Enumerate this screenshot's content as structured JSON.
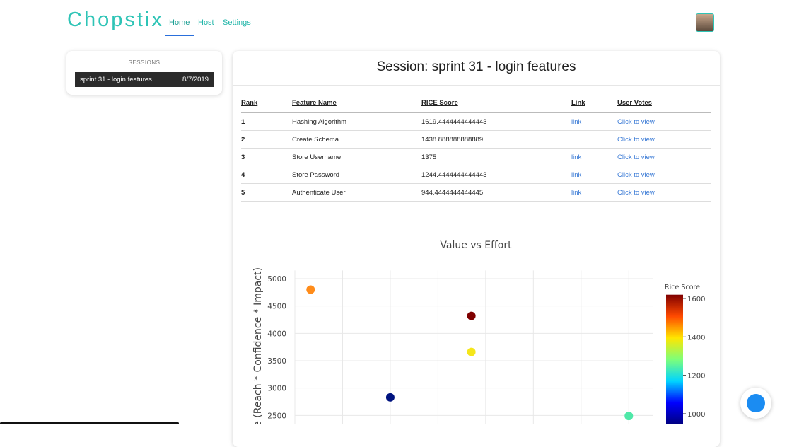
{
  "header": {
    "brand": "Chopstix",
    "nav": [
      "Home",
      "Host",
      "Settings"
    ]
  },
  "sidebar": {
    "title": "SESSIONS",
    "sessions": [
      {
        "name": "sprint 31 - login features",
        "date": "8/7/2019"
      }
    ]
  },
  "session": {
    "title": "Session: sprint 31 - login features",
    "table": {
      "headers": [
        "Rank",
        "Feature Name",
        "RICE Score",
        "Link",
        "User Votes"
      ],
      "rows": [
        [
          1,
          "Hashing Algorithm",
          1619.4444444444443,
          "link",
          "Click to view"
        ],
        [
          2,
          "Create Schema",
          1438.888888888889,
          null,
          "Click to view"
        ],
        [
          3,
          "Store Username",
          1375,
          "link",
          "Click to view"
        ],
        [
          4,
          "Store Password",
          1244.4444444444443,
          "link",
          "Click to view"
        ],
        [
          5,
          "Authenticate User",
          944.4444444444445,
          "link",
          "Click to view"
        ]
      ]
    }
  },
  "chart": {
    "type": "scatter",
    "title": "Value vs Effort",
    "y_label": "Value (Reach * Confidence * Impact)",
    "xlim": [
      1,
      8.5
    ],
    "xgrid": [
      2,
      3,
      4,
      5,
      6,
      7,
      8
    ],
    "ylim": [
      2000,
      5150
    ],
    "yticks": [
      2500,
      3000,
      3500,
      4000,
      4500,
      5000
    ],
    "points": [
      {
        "x": 4.7,
        "y": 4320,
        "color": "#7f0000"
      },
      {
        "x": 1.33,
        "y": 4800,
        "color": "#ff8c1a"
      },
      {
        "x": 4.7,
        "y": 3660,
        "color": "#f5e61a"
      },
      {
        "x": 8,
        "y": 2490,
        "color": "#4fe8a8"
      },
      {
        "x": 3,
        "y": 2830,
        "color": "#00137f"
      }
    ],
    "colorbar": {
      "title": "Rice Score",
      "clim": [
        944.44,
        1619.44
      ],
      "ticks": [
        1000,
        1200,
        1400,
        1600
      ],
      "colors": [
        "#00007f",
        "#0000ff",
        "#00d4ff",
        "#7dff7a",
        "#ffe600",
        "#ff4a00",
        "#7f0000"
      ]
    }
  }
}
